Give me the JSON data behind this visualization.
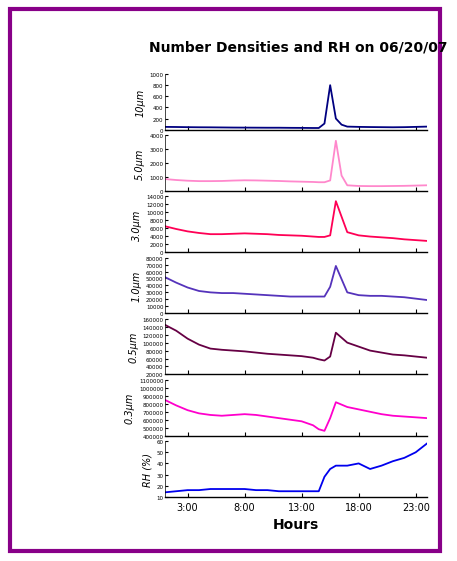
{
  "title": "Number Densities and RH on 06/20/07",
  "xlabel": "Hours",
  "x_ticks": [
    180,
    480,
    780,
    1080,
    1380
  ],
  "x_tick_labels": [
    "3:00",
    "8:00",
    "13:00",
    "18:00",
    "23:00"
  ],
  "x_range": [
    60,
    1440
  ],
  "border_color": "#880088",
  "fig_width": 4.0,
  "fig_height": 5.42,
  "panels": [
    {
      "label": "10μm",
      "color": "#000080",
      "ylim": [
        0,
        1000
      ],
      "yticks": [
        0,
        200,
        400,
        600,
        800,
        1000
      ],
      "data_x": [
        60,
        120,
        180,
        240,
        300,
        360,
        420,
        480,
        540,
        600,
        660,
        720,
        780,
        810,
        840,
        870,
        900,
        930,
        960,
        990,
        1020,
        1080,
        1140,
        1200,
        1260,
        1320,
        1380,
        1440
      ],
      "data_y": [
        50,
        48,
        45,
        43,
        42,
        40,
        38,
        37,
        36,
        35,
        35,
        33,
        32,
        31,
        30,
        30,
        110,
        800,
        200,
        90,
        55,
        50,
        47,
        45,
        43,
        45,
        50,
        55
      ]
    },
    {
      "label": "5.0μm",
      "color": "#FF88CC",
      "ylim": [
        0,
        4000
      ],
      "yticks": [
        0,
        1000,
        2000,
        3000,
        4000
      ],
      "data_x": [
        60,
        120,
        180,
        240,
        300,
        360,
        420,
        480,
        540,
        600,
        660,
        720,
        780,
        840,
        870,
        900,
        930,
        960,
        990,
        1020,
        1080,
        1140,
        1200,
        1260,
        1320,
        1380,
        1440
      ],
      "data_y": [
        850,
        780,
        730,
        700,
        700,
        710,
        740,
        760,
        750,
        730,
        710,
        680,
        660,
        640,
        620,
        620,
        750,
        3600,
        1100,
        400,
        350,
        340,
        340,
        350,
        360,
        380,
        400
      ]
    },
    {
      "label": "3.0μm",
      "color": "#FF0055",
      "ylim": [
        0,
        14000
      ],
      "yticks": [
        0,
        2000,
        4000,
        6000,
        8000,
        10000,
        12000,
        14000
      ],
      "data_x": [
        60,
        120,
        180,
        240,
        300,
        360,
        420,
        480,
        540,
        600,
        660,
        720,
        780,
        840,
        870,
        900,
        930,
        960,
        1020,
        1080,
        1140,
        1200,
        1260,
        1320,
        1380,
        1440
      ],
      "data_y": [
        6500,
        5800,
        5200,
        4800,
        4500,
        4500,
        4600,
        4700,
        4600,
        4500,
        4300,
        4200,
        4100,
        3900,
        3800,
        3800,
        4200,
        12800,
        5000,
        4200,
        3900,
        3700,
        3500,
        3200,
        3000,
        2800
      ]
    },
    {
      "label": "1.0μm",
      "color": "#5533BB",
      "ylim": [
        0,
        80000
      ],
      "yticks": [
        0,
        10000,
        20000,
        30000,
        40000,
        50000,
        60000,
        70000,
        80000
      ],
      "data_x": [
        60,
        120,
        180,
        240,
        300,
        360,
        420,
        480,
        540,
        600,
        660,
        720,
        780,
        840,
        870,
        900,
        930,
        960,
        1020,
        1080,
        1140,
        1200,
        1260,
        1320,
        1380,
        1440
      ],
      "data_y": [
        52000,
        44000,
        37000,
        32000,
        30000,
        29000,
        29000,
        28000,
        27000,
        26000,
        25000,
        24000,
        24000,
        24000,
        24000,
        24000,
        38000,
        68000,
        30000,
        26000,
        25000,
        25000,
        24000,
        23000,
        21000,
        19000
      ]
    },
    {
      "label": "0.5μm",
      "color": "#660044",
      "ylim": [
        20000,
        160000
      ],
      "yticks": [
        20000,
        40000,
        60000,
        80000,
        100000,
        120000,
        140000,
        160000
      ],
      "data_x": [
        60,
        120,
        180,
        240,
        300,
        360,
        420,
        480,
        540,
        600,
        660,
        720,
        780,
        840,
        870,
        900,
        930,
        960,
        1020,
        1080,
        1140,
        1200,
        1260,
        1320,
        1380,
        1440
      ],
      "data_y": [
        145000,
        130000,
        110000,
        95000,
        85000,
        82000,
        80000,
        78000,
        75000,
        72000,
        70000,
        68000,
        66000,
        62000,
        58000,
        55000,
        65000,
        125000,
        100000,
        90000,
        80000,
        75000,
        70000,
        68000,
        65000,
        62000
      ]
    },
    {
      "label": "0.3μm",
      "color": "#FF00CC",
      "ylim": [
        400000,
        1100000
      ],
      "yticks": [
        400000,
        500000,
        600000,
        700000,
        800000,
        900000,
        1000000,
        1100000
      ],
      "data_x": [
        60,
        120,
        180,
        240,
        300,
        360,
        420,
        480,
        540,
        600,
        660,
        720,
        780,
        840,
        870,
        900,
        930,
        960,
        1020,
        1080,
        1140,
        1200,
        1260,
        1320,
        1380,
        1440
      ],
      "data_y": [
        850000,
        780000,
        720000,
        680000,
        660000,
        650000,
        660000,
        670000,
        660000,
        640000,
        620000,
        600000,
        580000,
        530000,
        480000,
        460000,
        620000,
        820000,
        760000,
        730000,
        700000,
        670000,
        650000,
        640000,
        630000,
        620000
      ]
    },
    {
      "label": "RH (%)",
      "color": "#0000EE",
      "ylim": [
        10,
        60
      ],
      "yticks": [
        10,
        20,
        30,
        40,
        50,
        60
      ],
      "data_x": [
        60,
        120,
        180,
        240,
        300,
        360,
        420,
        480,
        540,
        600,
        660,
        720,
        780,
        840,
        870,
        900,
        930,
        960,
        1020,
        1080,
        1140,
        1200,
        1260,
        1320,
        1380,
        1440
      ],
      "data_y": [
        14,
        15,
        16,
        16,
        17,
        17,
        17,
        17,
        16,
        16,
        15,
        15,
        15,
        15,
        15,
        28,
        35,
        38,
        38,
        40,
        35,
        38,
        42,
        45,
        50,
        58
      ]
    }
  ]
}
